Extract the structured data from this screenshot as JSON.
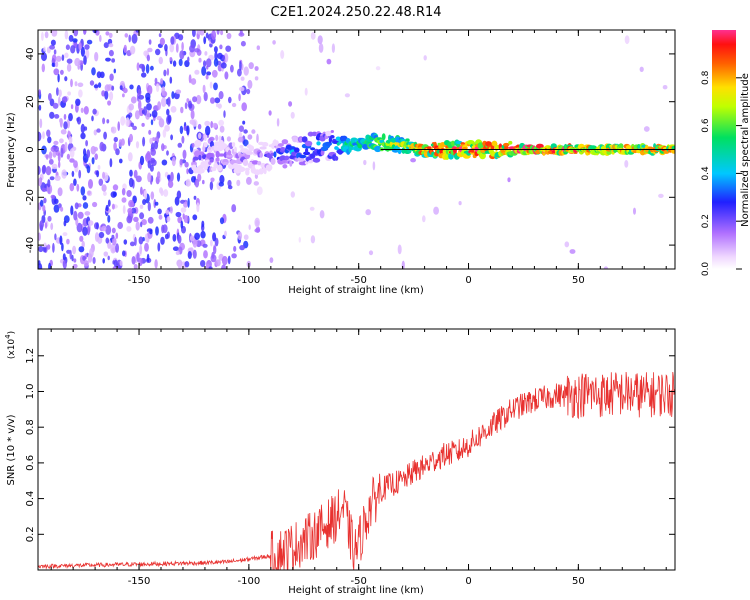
{
  "title": "C2E1.2024.250.22.48.R14",
  "colorbar": {
    "label": "Normalized spectral amplitude",
    "ticks": [
      "0.0",
      "0.2",
      "0.4",
      "0.6",
      "0.8"
    ]
  },
  "chart_data": [
    {
      "type": "heatmap",
      "xlabel": "Height of straight line (km)",
      "ylabel": "Frequency (Hz)",
      "xlim": [
        -196,
        94
      ],
      "ylim": [
        -50,
        50
      ],
      "xticks": [
        -150,
        -100,
        -50,
        0,
        50
      ],
      "yticks": [
        -40,
        -20,
        0,
        20,
        40
      ],
      "xtick_labels": [
        "-150",
        "-100",
        "-50",
        "0",
        "50"
      ],
      "ytick_labels": [
        "-40",
        "-20",
        "0",
        "20",
        "40"
      ],
      "ridge": {
        "x": [
          -120,
          -100,
          -90,
          -80,
          -70,
          -60,
          -55,
          -50,
          -40,
          -30,
          -20,
          0,
          20,
          40,
          50,
          60,
          70,
          80,
          90
        ],
        "freq": [
          -3,
          -4,
          -3,
          -1,
          1,
          2,
          2,
          3,
          3,
          2,
          0,
          0,
          0,
          0,
          0,
          0,
          0,
          0,
          0
        ],
        "amplitude": [
          0.25,
          0.2,
          0.3,
          0.4,
          0.45,
          0.5,
          0.55,
          0.55,
          0.7,
          0.75,
          0.9,
          0.95,
          0.95,
          0.95,
          0.9,
          0.8,
          0.85,
          0.85,
          0.85
        ]
      }
    },
    {
      "type": "line",
      "xlabel": "Height of straight line (km)",
      "ylabel": "SNR (10 * v/v)",
      "yscale_label": "(x10",
      "yscale_exp": "4",
      "ylabel_suffix": ")",
      "xlim": [
        -196,
        94
      ],
      "ylim": [
        0,
        13500
      ],
      "xticks": [
        -150,
        -100,
        -50,
        0,
        50
      ],
      "yticks": [
        2000,
        4000,
        6000,
        8000,
        10000,
        12000
      ],
      "xtick_labels": [
        "-150",
        "-100",
        "-50",
        "0",
        "50"
      ],
      "ytick_labels": [
        "0.2",
        "0.4",
        "0.6",
        "0.8",
        "1.0",
        "1.2"
      ],
      "color": "#e8312f",
      "series": [
        {
          "x": [
            -196,
            -180,
            -160,
            -140,
            -120,
            -110,
            -100,
            -90,
            -80,
            -70,
            -65,
            -60,
            -57,
            -55,
            -52,
            -50,
            -45,
            -40,
            -35,
            -30,
            -25,
            -20,
            -15,
            -10,
            -5,
            0,
            10,
            20,
            30,
            40,
            45,
            50,
            55,
            60,
            70,
            80,
            90,
            94
          ],
          "values": [
            200,
            250,
            300,
            350,
            400,
            450,
            600,
            800,
            1300,
            2000,
            2500,
            3000,
            3500,
            2500,
            1000,
            1500,
            3500,
            4500,
            4800,
            5000,
            5500,
            5800,
            6200,
            6500,
            6600,
            7000,
            8000,
            9000,
            9500,
            9800,
            9800,
            9800,
            9900,
            9800,
            9900,
            9800,
            9900,
            9800
          ]
        }
      ]
    }
  ]
}
